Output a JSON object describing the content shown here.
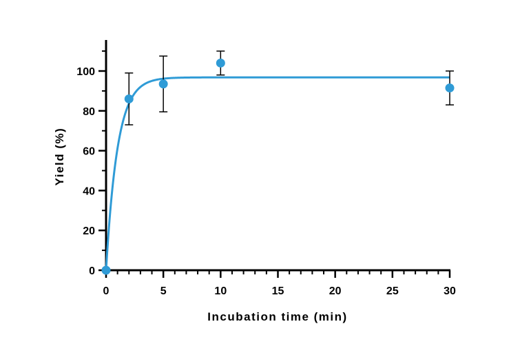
{
  "chart_data": {
    "type": "scatter",
    "xlabel": "Incubation time (min)",
    "ylabel": "Yield (%)",
    "xlim": [
      0,
      30
    ],
    "ylim": [
      0,
      110
    ],
    "x_ticks": [
      0,
      5,
      10,
      15,
      20,
      25,
      30
    ],
    "y_ticks": [
      0,
      20,
      40,
      60,
      80,
      100
    ],
    "x_minor_step": 1,
    "y_minor_step": 10,
    "grid": false,
    "legend": "none",
    "series": [
      {
        "points": [
          {
            "x": 0,
            "y": 0,
            "err": 0
          },
          {
            "x": 2,
            "y": 86,
            "err": 13
          },
          {
            "x": 5,
            "y": 93.5,
            "err": 14
          },
          {
            "x": 10,
            "y": 104,
            "err": 6
          },
          {
            "x": 30,
            "y": 91.5,
            "err": 8.5
          }
        ],
        "color": "#2f9bd6"
      }
    ],
    "fit": {
      "model": "one-phase association",
      "plateau": 96.8,
      "k": 1.0,
      "color": "#2f9bd6"
    }
  }
}
